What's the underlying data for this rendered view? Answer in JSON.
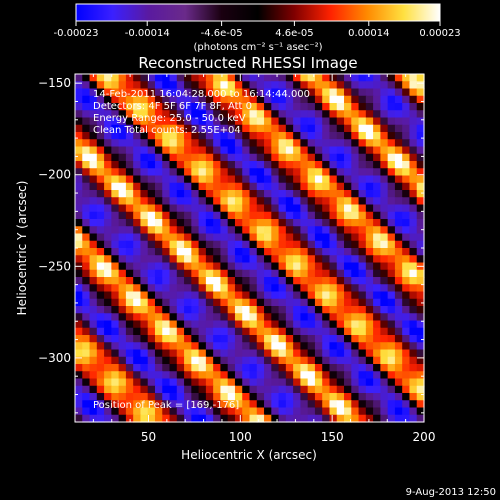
{
  "chart_data": {
    "type": "heatmap",
    "title": "Reconstructed RHESSI Image",
    "xlabel": "Heliocentric X (arcsec)",
    "ylabel": "Heliocentric Y (arcsec)",
    "xlim": [
      10,
      200
    ],
    "ylim": [
      -335,
      -145
    ],
    "x_ticks": [
      50,
      100,
      150,
      200
    ],
    "y_ticks": [
      -150,
      -200,
      -250,
      -300
    ],
    "colorbar": {
      "range": [
        -0.00023,
        0.00023
      ],
      "ticks": [
        "-0.00023",
        "-0.00014",
        "-4.6e-05",
        "4.6e-05",
        "0.00014",
        "0.00023"
      ],
      "tick_values": [
        -0.00023,
        -0.00014,
        -4.6e-05,
        4.6e-05,
        0.00014,
        0.00023
      ],
      "unit_label": "(photons cm⁻² s⁻¹ asec⁻²)",
      "colors": [
        "#0000ff",
        "#3a20ff",
        "#5a1aa0",
        "#6a2a8a",
        "#1a0010",
        "#000000",
        "#800000",
        "#ff2200",
        "#ff8a00",
        "#ffe040",
        "#ffffff"
      ]
    },
    "annotations": [
      "14-Feb-2011 16:04:28.000 to 16:14:44.000",
      "Detectors: 4F 5F 6F 7F 8F, Att 0",
      "Energy Range: 25.0 - 50.0 keV",
      "Clean    Total counts: 2.55E+04"
    ],
    "peak_label": "Position of Peak = [169,-176]",
    "pattern": {
      "description_values": "diagonal stripes of alternating positive/negative flux",
      "stripe_axis": "x+y",
      "stripe_period_arcsec": 55,
      "peak_x": 169,
      "peak_y": -176
    }
  },
  "footer": {
    "date": "9-Aug-2013 12:50"
  }
}
